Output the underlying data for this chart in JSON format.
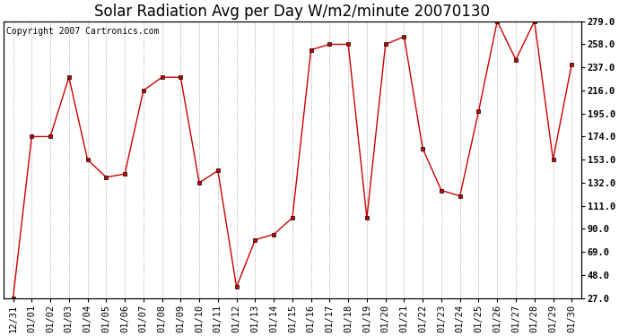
{
  "title": "Solar Radiation Avg per Day W/m2/minute 20070130",
  "copyright": "Copyright 2007 Cartronics.com",
  "labels": [
    "12/31",
    "01/01",
    "01/02",
    "01/03",
    "01/04",
    "01/05",
    "01/06",
    "01/07",
    "01/08",
    "01/09",
    "01/10",
    "01/11",
    "01/12",
    "01/13",
    "01/14",
    "01/15",
    "01/16",
    "01/17",
    "01/18",
    "01/19",
    "01/20",
    "01/21",
    "01/22",
    "01/23",
    "01/24",
    "01/25",
    "01/26",
    "01/27",
    "01/28",
    "01/29",
    "01/30"
  ],
  "values": [
    27.0,
    174.0,
    174.0,
    228.0,
    153.0,
    137.0,
    140.0,
    216.0,
    228.0,
    228.0,
    132.0,
    143.0,
    37.0,
    80.0,
    85.0,
    100.0,
    253.0,
    258.0,
    258.0,
    100.0,
    258.0,
    265.0,
    163.0,
    125.0,
    120.0,
    197.0,
    279.0,
    244.0,
    279.0,
    153.0,
    240.0
  ],
  "line_color": "#cc0000",
  "marker": "s",
  "marker_size": 3,
  "background_color": "#ffffff",
  "grid_color": "#bbbbbb",
  "ylim": [
    27.0,
    279.0
  ],
  "yticks": [
    27.0,
    48.0,
    69.0,
    90.0,
    111.0,
    132.0,
    153.0,
    174.0,
    195.0,
    216.0,
    237.0,
    258.0,
    279.0
  ],
  "title_fontsize": 12,
  "copyright_fontsize": 7,
  "tick_fontsize": 7.5,
  "fig_width": 6.9,
  "fig_height": 3.75,
  "dpi": 100
}
